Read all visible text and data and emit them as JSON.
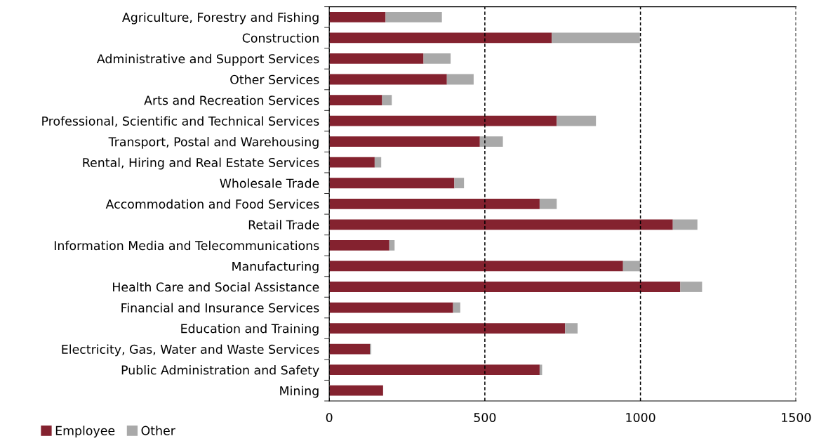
{
  "chart_data": {
    "type": "bar",
    "orientation": "horizontal",
    "stacked": true,
    "categories": [
      "Agriculture, Forestry and Fishing",
      "Construction",
      "Administrative and Support Services",
      "Other Services",
      "Arts and Recreation Services",
      "Professional, Scientific and Technical Services",
      "Transport, Postal and Warehousing",
      "Rental, Hiring and Real Estate Services",
      "Wholesale Trade",
      "Accommodation and Food Services",
      "Retail Trade",
      "Information Media and Telecommunications",
      "Manufacturing",
      "Health Care and Social Assistance",
      "Financial and Insurance Services",
      "Education and Training",
      "Electricity, Gas, Water and Waste Services",
      "Public Administration and Safety",
      "Mining"
    ],
    "series": [
      {
        "name": "Employee",
        "color": "#84222f",
        "values": [
          181,
          715,
          303,
          378,
          170,
          731,
          484,
          146,
          402,
          676,
          1104,
          193,
          944,
          1128,
          398,
          758,
          131,
          676,
          173
        ]
      },
      {
        "name": "Other",
        "color": "#a9a9a9",
        "values": [
          181,
          283,
          87,
          86,
          31,
          126,
          74,
          21,
          31,
          55,
          79,
          17,
          56,
          70,
          23,
          40,
          4,
          8,
          0
        ]
      }
    ],
    "xlim": [
      0,
      1500
    ],
    "xticks": [
      0,
      500,
      1000,
      1500
    ],
    "grid": "x",
    "legend": "bottom left"
  }
}
